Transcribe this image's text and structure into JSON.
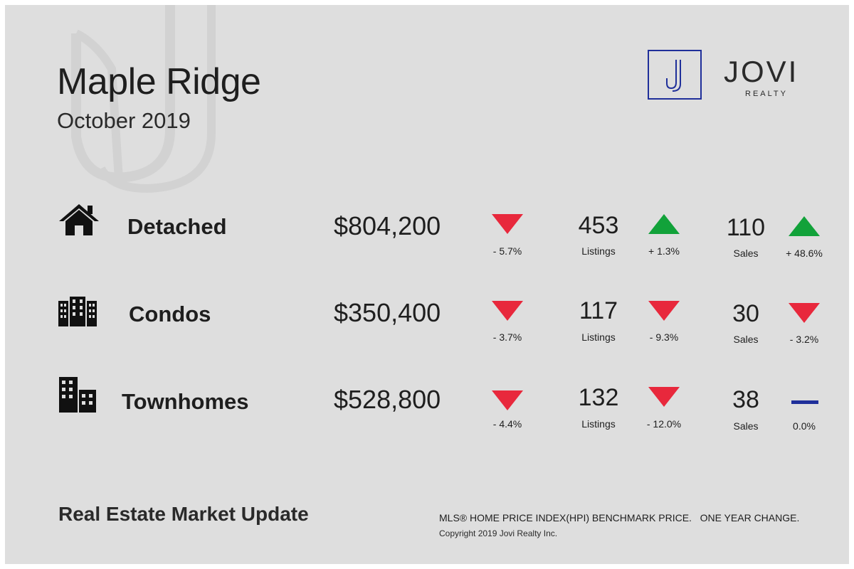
{
  "header": {
    "title": "Maple Ridge",
    "subtitle": "October 2019"
  },
  "logo": {
    "icon": "j-letter-icon",
    "name": "JOVI",
    "tagline": "REALTY",
    "color": "#1f2f9a"
  },
  "colors": {
    "down": "#e8283c",
    "up": "#12a23a",
    "flat": "#1f2f9a"
  },
  "rows": [
    {
      "type": "Detached",
      "icon": "house-icon",
      "price": "$804,200",
      "price_trend": "down",
      "price_change": "- 5.7%",
      "listings": "453",
      "listings_label": "Listings",
      "listings_trend": "up",
      "listings_change": "+ 1.3%",
      "sales": "110",
      "sales_label": "Sales",
      "sales_trend": "up",
      "sales_change": "+ 48.6%"
    },
    {
      "type": "Condos",
      "icon": "condo-building-icon",
      "price": "$350,400",
      "price_trend": "down",
      "price_change": "- 3.7%",
      "listings": "117",
      "listings_label": "Listings",
      "listings_trend": "down",
      "listings_change": "- 9.3%",
      "sales": "30",
      "sales_label": "Sales",
      "sales_trend": "down",
      "sales_change": "- 3.2%"
    },
    {
      "type": "Townhomes",
      "icon": "townhome-building-icon",
      "price": "$528,800",
      "price_trend": "down",
      "price_change": "- 4.4%",
      "listings": "132",
      "listings_label": "Listings",
      "listings_trend": "down",
      "listings_change": "- 12.0%",
      "sales": "38",
      "sales_label": "Sales",
      "sales_trend": "flat",
      "sales_change": "0.0%"
    }
  ],
  "footer": {
    "title": "Real Estate Market Update",
    "note": "MLS® HOME PRICE INDEX(HPI) BENCHMARK PRICE.   ONE YEAR CHANGE.",
    "copyright": "Copyright 2019 Jovi Realty Inc."
  }
}
